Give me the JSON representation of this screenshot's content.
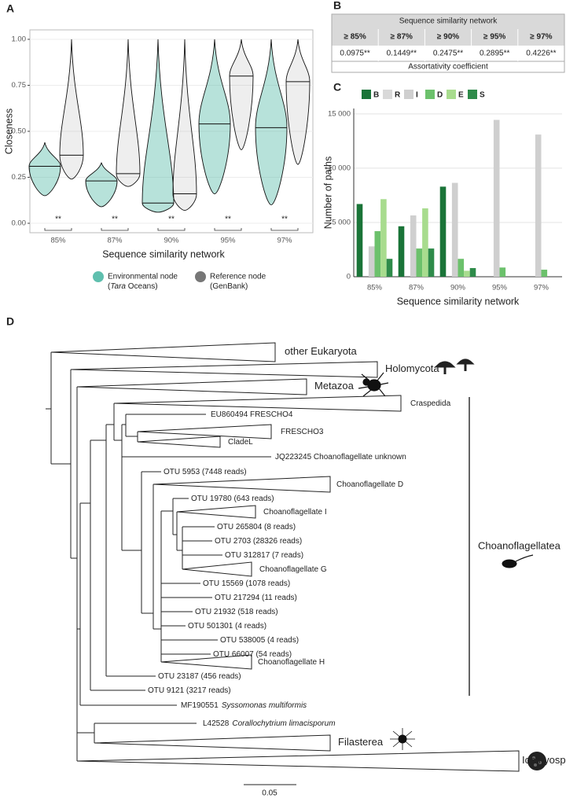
{
  "chart_data": [
    {
      "type": "violin",
      "panel": "A",
      "ylabel": "Closeness",
      "xlabel": "Sequence similarity network",
      "categories": [
        "85%",
        "87%",
        "90%",
        "95%",
        "97%"
      ],
      "annotations": [
        "**",
        "**",
        "**",
        "**",
        "**"
      ],
      "ylim": [
        0,
        1
      ],
      "yticks": [
        {
          "value": 0,
          "label": "0.00"
        },
        {
          "value": 0.25,
          "label": "0.25"
        },
        {
          "value": 0.5,
          "label": "0.50"
        },
        {
          "value": 0.75,
          "label": "0.75"
        },
        {
          "value": 1,
          "label": "1.00"
        }
      ],
      "grid": true,
      "series": [
        {
          "name": "Environmental node",
          "source": [
            "(",
            "Tara",
            " Oceans)"
          ],
          "color": "#5fbfae",
          "median": [
            0.31,
            0.23,
            0.11,
            0.54,
            0.52
          ],
          "min": [
            0.15,
            0.09,
            0.06,
            0.16,
            0.1
          ],
          "max": [
            0.44,
            0.33,
            1.0,
            1.0,
            1.0
          ]
        },
        {
          "name": "Reference node",
          "source": [
            "(GenBank)"
          ],
          "color": "#777777",
          "median": [
            0.37,
            0.27,
            0.16,
            0.8,
            0.77
          ],
          "min": [
            0.24,
            0.2,
            0.07,
            0.4,
            0.32
          ],
          "max": [
            1.0,
            1.0,
            1.0,
            1.0,
            1.0
          ]
        }
      ]
    },
    {
      "type": "bar",
      "panel": "C",
      "ylabel": "Number of paths",
      "xlabel": "Sequence similarity network",
      "categories": [
        "85%",
        "87%",
        "90%",
        "95%",
        "97%"
      ],
      "ylim": [
        0,
        15500
      ],
      "yticks": [
        0,
        {
          "value": 5000,
          "label": "5 000"
        },
        {
          "value": 10000,
          "label": "10 000"
        },
        {
          "value": 15000,
          "label": "15 000"
        }
      ],
      "grid": true,
      "legend": "top",
      "series": [
        {
          "name": "B",
          "color": "#1a7438",
          "values": [
            6700,
            4650,
            8300,
            0,
            0
          ]
        },
        {
          "name": "R",
          "color": "#d9d9d9",
          "values": [
            0,
            0,
            0,
            0,
            0
          ]
        },
        {
          "name": "I",
          "color": "#cfcfcf",
          "values": [
            2800,
            5650,
            8650,
            14450,
            13100
          ]
        },
        {
          "name": "D",
          "color": "#6cc16c",
          "values": [
            4200,
            2600,
            1650,
            850,
            650
          ]
        },
        {
          "name": "E",
          "color": "#a8dc8e",
          "values": [
            7150,
            6300,
            550,
            0,
            0
          ]
        },
        {
          "name": "S",
          "color": "#2e8b4a",
          "values": [
            1650,
            2600,
            800,
            0,
            0
          ]
        }
      ]
    }
  ],
  "table": {
    "panel": "B",
    "title": "Sequence similarity network",
    "headers": [
      "≥ 85%",
      "≥ 87%",
      "≥ 90%",
      "≥ 95%",
      "≥ 97%"
    ],
    "values": [
      "0.0975**",
      "0.1449**",
      "0.2475**",
      "0.2895**",
      "0.4226**"
    ],
    "caption": "Assortativity coefficient"
  },
  "tree": {
    "panel": "D",
    "clade": "Choanoflagellatea",
    "scale": "0.05",
    "leaves": [
      {
        "label": "other Eukaryota"
      },
      {
        "label": "Holomycota"
      },
      {
        "label": "Metazoa"
      },
      {
        "label": "Craspedida"
      },
      {
        "label": "EU860494 FRESCHO4"
      },
      {
        "label": "FRESCHO3"
      },
      {
        "label": "CladeL"
      },
      {
        "label": "JQ223245 Choanoflagellate unknown"
      },
      {
        "label": "OTU 5953 (7448 reads)",
        "color": "#c0272d"
      },
      {
        "label": "Choanoflagellate D"
      },
      {
        "label": "OTU 19780 (643 reads)",
        "color": "#c0272d"
      },
      {
        "label": "Choanoflagellate I"
      },
      {
        "label": "OTU 265804 (8 reads)",
        "color": "#c0272d"
      },
      {
        "label": "OTU 2703 (28326 reads)",
        "color": "#c0272d"
      },
      {
        "label": "OTU 312817 (7 reads)",
        "color": "#c0272d"
      },
      {
        "label": "Choanoflagellate G"
      },
      {
        "label": "OTU 15569 (1078 reads)",
        "color": "#c0272d"
      },
      {
        "label": "OTU 217294 (11 reads)",
        "color": "#c0272d"
      },
      {
        "label": "OTU 21932 (518 reads)",
        "color": "#c0272d"
      },
      {
        "label": "OTU 501301 (4 reads)",
        "color": "#c0272d"
      },
      {
        "label": "OTU 538005 (4 reads)",
        "color": "#c0272d"
      },
      {
        "label": "OTU 66007 (54 reads)",
        "color": "#c0272d"
      },
      {
        "label": "Choanoflagellate H"
      },
      {
        "label": "OTU 23187 (456 reads)",
        "color": "#c0272d"
      },
      {
        "label": "OTU 9121 (3217 reads)",
        "color": "#c0272d"
      },
      {
        "label": "MF190551",
        "species": "Syssomonas multiformis"
      },
      {
        "label": "L42528",
        "species": "Corallochytrium limacisporum"
      },
      {
        "label": "Filasterea"
      },
      {
        "label": "Ichthyosporea"
      }
    ]
  }
}
